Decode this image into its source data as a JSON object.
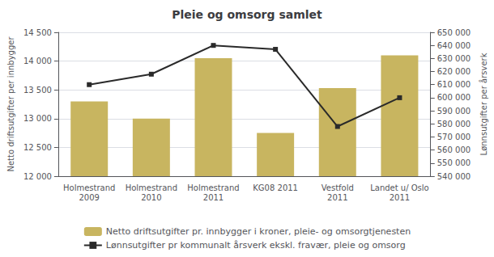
{
  "chart_data": {
    "type": "bar",
    "title": "Pleie og omsorg samlet",
    "categories": [
      "Holmestrand\n2009",
      "Holmestrand\n2010",
      "Holmestrand\n2011",
      "KG08 2011",
      "Vestfold\n2011",
      "Landet u/ Oslo\n2011"
    ],
    "series": [
      {
        "name": "Netto driftsutgifter pr. innbygger i kroner, pleie- og omsorgtjenesten",
        "type": "bar",
        "axis": "y",
        "color": "#C8B560",
        "values": [
          13300,
          13000,
          14050,
          12750,
          13530,
          14100
        ]
      },
      {
        "name": "Lønnsutgifter pr kommunalt årsverk ekskl. fravær, pleie og omsorg",
        "type": "line",
        "axis": "y2",
        "color": "#2A2A2A",
        "marker": "square",
        "values": [
          610000,
          618000,
          640000,
          637000,
          578000,
          600000
        ]
      }
    ],
    "ylabel": "Netto driftsutgifter per innbygger",
    "y2label": "Lønnsutgifter per årsverk",
    "ylim": [
      12000,
      14500
    ],
    "yticks": [
      {
        "value": 12000,
        "label": "12 000"
      },
      {
        "value": 12500,
        "label": "12 500"
      },
      {
        "value": 13000,
        "label": "13 000"
      },
      {
        "value": 13500,
        "label": "13 500"
      },
      {
        "value": 14000,
        "label": "14 000"
      },
      {
        "value": 14500,
        "label": "14 500"
      }
    ],
    "y2lim": [
      540000,
      650000
    ],
    "y2ticks": [
      {
        "value": 540000,
        "label": "540 000"
      },
      {
        "value": 550000,
        "label": "550 000"
      },
      {
        "value": 560000,
        "label": "560 000"
      },
      {
        "value": 570000,
        "label": "570 000"
      },
      {
        "value": 580000,
        "label": "580 000"
      },
      {
        "value": 590000,
        "label": "590 000"
      },
      {
        "value": 600000,
        "label": "600 000"
      },
      {
        "value": 610000,
        "label": "610 000"
      },
      {
        "value": 620000,
        "label": "620 000"
      },
      {
        "value": 630000,
        "label": "630 000"
      },
      {
        "value": 640000,
        "label": "640 000"
      },
      {
        "value": 650000,
        "label": "650 000"
      }
    ],
    "grid": true,
    "legend": "bottom"
  }
}
